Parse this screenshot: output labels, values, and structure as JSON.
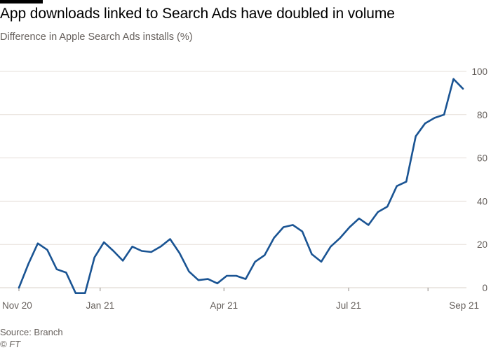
{
  "page": {
    "title": "App downloads linked to Search Ads have doubled in volume",
    "subtitle": "Difference in Apple Search Ads installs (%)",
    "source": "Source: Branch",
    "credit": "© FT"
  },
  "colors": {
    "line": "#1a5493",
    "grid": "#e6dfd9",
    "tick_text": "#66605c",
    "title_text": "#000000"
  },
  "chart_data": {
    "type": "line",
    "title": "App downloads linked to Search Ads have doubled in volume",
    "ylabel": "Difference in Apple Search Ads installs (%)",
    "xlabel": "",
    "ylim": [
      0,
      100
    ],
    "yticks": [
      0,
      20,
      40,
      60,
      80,
      100
    ],
    "y_axis_side": "right",
    "grid": true,
    "x_ticks": [
      {
        "label": "Nov 20",
        "week": 0
      },
      {
        "label": "Jan 21",
        "week": 8.6
      },
      {
        "label": "Apr 21",
        "week": 21.7
      },
      {
        "label": "Jul 21",
        "week": 34.9
      },
      {
        "label": "Sep 21",
        "week": 43.3
      }
    ],
    "series": [
      {
        "name": "Apple Search Ads installs",
        "x": [
          0,
          1,
          2,
          3,
          4,
          5,
          6,
          7,
          8,
          9,
          10,
          11,
          12,
          13,
          14,
          15,
          16,
          17,
          18,
          19,
          20,
          21,
          22,
          23,
          24,
          25,
          26,
          27,
          28,
          29,
          30,
          31,
          32,
          33,
          34,
          35,
          36,
          37,
          38,
          39,
          40,
          41,
          42,
          43
        ],
        "values": [
          0,
          11,
          20.5,
          17.5,
          8.5,
          7,
          -2.5,
          -2.5,
          14,
          21,
          17,
          12.5,
          19,
          17,
          16.5,
          19,
          22.5,
          16,
          7.5,
          3.5,
          4,
          2,
          5.5,
          5.5,
          4,
          12,
          15,
          23,
          28,
          29,
          26,
          15.5,
          12,
          19,
          23,
          28,
          32,
          29,
          35,
          37.5,
          47,
          49,
          70,
          76
        ]
      }
    ]
  }
}
